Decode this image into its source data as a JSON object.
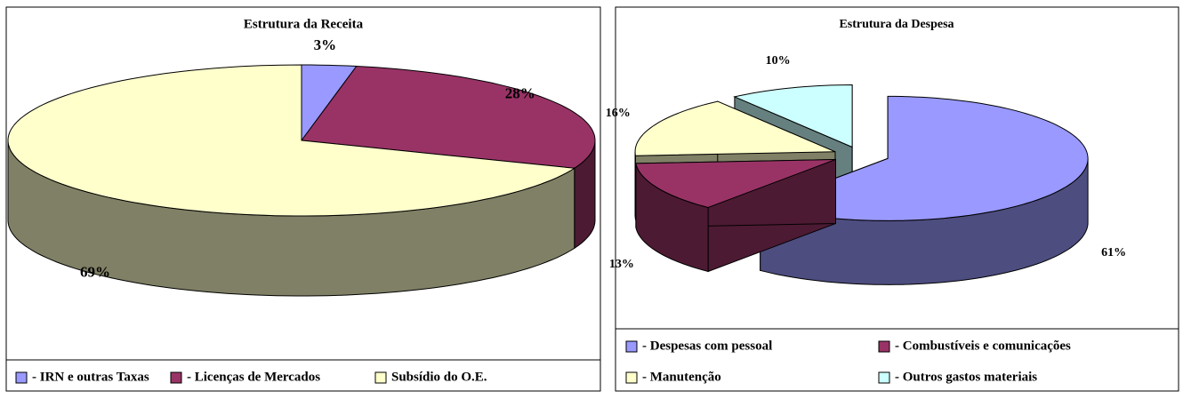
{
  "chart_data": [
    {
      "type": "pie3d",
      "title": "Estrutura da Receita",
      "categories": [
        "- IRN e outras Taxas",
        "- Licenças de Mercados",
        "Subsídio do O.E."
      ],
      "values": [
        3,
        28,
        69
      ],
      "value_labels": [
        "3%",
        "28%",
        "69%"
      ],
      "colors": [
        "#9999ff",
        "#993366",
        "#ffffcc"
      ],
      "legend": "bottom"
    },
    {
      "type": "pie3d",
      "title": "Estrutura da Despesa",
      "categories": [
        "- Despesas com pessoal",
        "- Combustíveis e comunicações",
        "- Manutenção",
        "- Outros gastos materiais"
      ],
      "values": [
        61,
        13,
        16,
        10
      ],
      "value_labels": [
        "61%",
        "13%",
        "16%",
        "10%"
      ],
      "colors": [
        "#9999ff",
        "#993366",
        "#ffffcc",
        "#ccffff"
      ],
      "legend": "bottom"
    }
  ]
}
